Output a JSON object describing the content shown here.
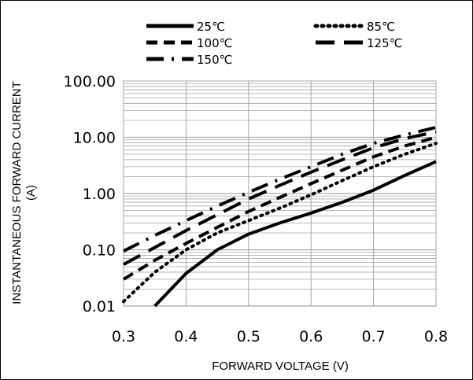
{
  "chart_data": {
    "type": "line",
    "xlabel": "FORWARD VOLTAGE (V)",
    "ylabel_line1": "INSTANTANEOUS FORWARD CURRENT",
    "ylabel_line2": "(A)",
    "xlim": [
      0.3,
      0.8
    ],
    "ylim": [
      0.01,
      100
    ],
    "y_scale": "log",
    "x_ticks": [
      0.3,
      0.4,
      0.5,
      0.6,
      0.7,
      0.8
    ],
    "x_tick_labels": [
      "0.3",
      "0.4",
      "0.5",
      "0.6",
      "0.7",
      "0.8"
    ],
    "y_ticks": [
      0.01,
      0.1,
      1,
      10,
      100
    ],
    "y_tick_labels": [
      "0.01",
      "0.10",
      "1.00",
      "10.00",
      "100.00"
    ],
    "grid": true,
    "legend_position": "top",
    "series": [
      {
        "name": "25℃",
        "dash": "solid",
        "x": [
          0.35,
          0.4,
          0.45,
          0.5,
          0.55,
          0.6,
          0.65,
          0.7,
          0.75,
          0.8
        ],
        "y": [
          0.01,
          0.038,
          0.1,
          0.19,
          0.3,
          0.45,
          0.7,
          1.15,
          2.1,
          3.7
        ]
      },
      {
        "name": "85℃",
        "dash": "dot",
        "x": [
          0.3,
          0.35,
          0.4,
          0.45,
          0.5,
          0.55,
          0.6,
          0.65,
          0.7,
          0.75,
          0.8
        ],
        "y": [
          0.012,
          0.04,
          0.1,
          0.2,
          0.33,
          0.55,
          0.95,
          1.7,
          3.0,
          5.0,
          7.8
        ]
      },
      {
        "name": "100℃",
        "dash": "dash",
        "x": [
          0.3,
          0.35,
          0.4,
          0.45,
          0.5,
          0.55,
          0.6,
          0.65,
          0.7,
          0.75,
          0.8
        ],
        "y": [
          0.03,
          0.065,
          0.13,
          0.25,
          0.48,
          0.85,
          1.5,
          2.6,
          4.5,
          7.0,
          10.0
        ]
      },
      {
        "name": "125℃",
        "dash": "longdash",
        "x": [
          0.3,
          0.35,
          0.4,
          0.45,
          0.5,
          0.55,
          0.6,
          0.65,
          0.7,
          0.75,
          0.8
        ],
        "y": [
          0.055,
          0.11,
          0.22,
          0.42,
          0.8,
          1.4,
          2.4,
          4.0,
          6.5,
          9.5,
          12.5
        ]
      },
      {
        "name": "150℃",
        "dash": "dashdot",
        "x": [
          0.3,
          0.35,
          0.4,
          0.45,
          0.5,
          0.55,
          0.6,
          0.65,
          0.7,
          0.75,
          0.8
        ],
        "y": [
          0.095,
          0.18,
          0.33,
          0.6,
          1.05,
          1.8,
          3.0,
          5.0,
          7.8,
          11.0,
          15.0
        ]
      }
    ]
  },
  "colors": {
    "line": "#000000",
    "grid": "#a6a6a6",
    "frame": "#000000"
  }
}
